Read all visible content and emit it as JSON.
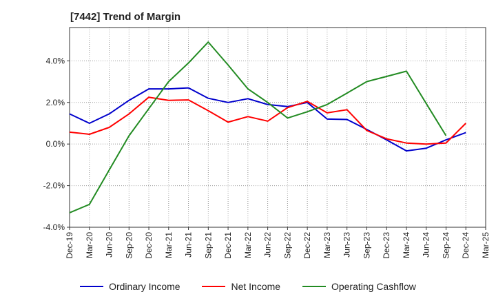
{
  "chart_data": {
    "type": "line",
    "title": "[7442]  Trend of Margin",
    "xlabel": "",
    "ylabel": "",
    "categories": [
      "Dec-19",
      "Mar-20",
      "Jun-20",
      "Sep-20",
      "Dec-20",
      "Mar-21",
      "Jun-21",
      "Sep-21",
      "Dec-21",
      "Mar-22",
      "Jun-22",
      "Sep-22",
      "Dec-22",
      "Mar-23",
      "Jun-23",
      "Sep-23",
      "Dec-23",
      "Mar-24",
      "Jun-24",
      "Sep-24",
      "Dec-24",
      "Mar-25"
    ],
    "y_tick_labels": [
      "-4.0%",
      "-2.0%",
      "0.0%",
      "2.0%",
      "4.0%"
    ],
    "y_ticks": [
      -4,
      -2,
      0,
      2,
      4
    ],
    "ylim": [
      -4,
      5.6
    ],
    "grid": true,
    "legend_position": "bottom",
    "series": [
      {
        "name": "Ordinary Income",
        "color": "#0000cc",
        "values": [
          1.45,
          1.0,
          1.45,
          2.1,
          2.65,
          2.65,
          2.7,
          2.2,
          2.0,
          2.18,
          1.9,
          1.8,
          2.0,
          1.2,
          1.18,
          0.7,
          0.2,
          -0.33,
          -0.2,
          0.2,
          0.55,
          null
        ]
      },
      {
        "name": "Net Income",
        "color": "#ff0000",
        "values": [
          0.57,
          0.47,
          0.8,
          1.45,
          2.25,
          2.1,
          2.12,
          1.6,
          1.05,
          1.32,
          1.1,
          1.75,
          2.05,
          1.5,
          1.65,
          0.65,
          0.25,
          0.05,
          0.0,
          0.05,
          1.0,
          null
        ]
      },
      {
        "name": "Operating Cashflow",
        "color": "#228B22",
        "values": [
          -3.3,
          -2.9,
          -1.25,
          0.4,
          1.7,
          3.0,
          3.9,
          4.9,
          3.8,
          2.65,
          2.0,
          1.25,
          1.55,
          1.9,
          2.45,
          3.0,
          3.25,
          3.5,
          1.95,
          0.4,
          null,
          null
        ]
      }
    ]
  }
}
